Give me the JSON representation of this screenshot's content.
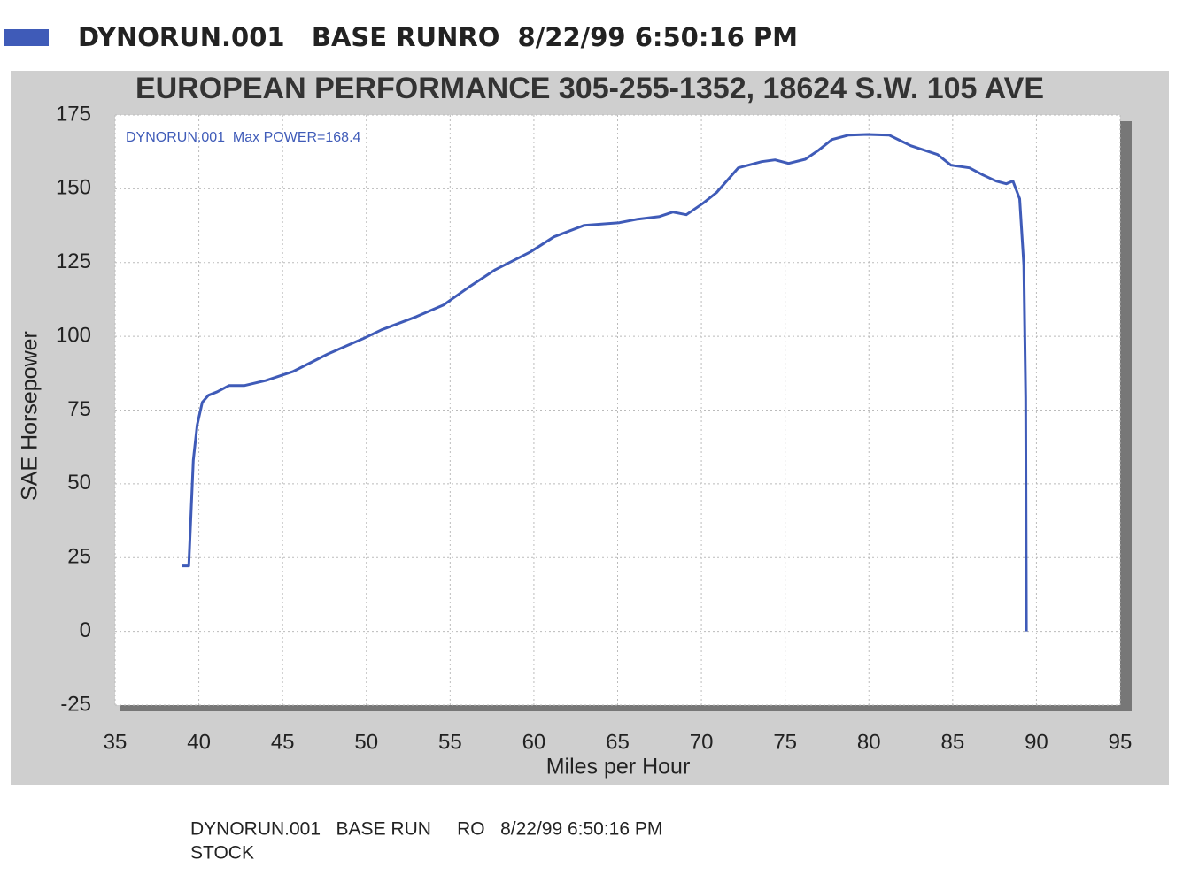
{
  "chart_data": {
    "type": "line",
    "title": "EUROPEAN PERFORMANCE 305-255-1352, 18624 S.W. 105 AVE",
    "annotation": "DYNORUN.001  Max POWER=168.4",
    "x_label": "Miles per Hour",
    "y_label": "SAE Horsepower",
    "x": [
      39.0,
      39.4,
      39.67,
      39.9,
      40.2,
      40.57,
      41.1,
      41.8,
      42.7,
      44.0,
      45.6,
      47.7,
      49.8,
      50.9,
      53.0,
      54.6,
      56.1,
      57.7,
      59.8,
      61.2,
      63.0,
      65.1,
      66.2,
      67.5,
      68.3,
      69.1,
      70.1,
      70.9,
      72.2,
      73.6,
      74.4,
      75.2,
      76.2,
      77.0,
      77.8,
      78.8,
      79.9,
      81.2,
      82.5,
      84.1,
      84.9,
      86.0,
      86.8,
      87.6,
      88.2,
      88.6,
      89.0,
      89.25,
      89.36,
      89.4
    ],
    "series": [
      {
        "name": "DYNORUN.001   BASE RUNRO  8/22/99 6:50:16 PM",
        "color": "#3f5bb8",
        "values": [
          22.2,
          22.2,
          58,
          70,
          77.6,
          80,
          81.2,
          83.3,
          83.3,
          85,
          88,
          94,
          99.2,
          102.2,
          106.7,
          110.6,
          116.6,
          122.6,
          128.6,
          133.7,
          137.6,
          138.5,
          139.7,
          140.6,
          142.1,
          141.2,
          145.1,
          148.7,
          157.1,
          159.2,
          159.8,
          158.6,
          160,
          163.1,
          166.7,
          168.2,
          168.4,
          168.2,
          164.6,
          161.6,
          158,
          157.1,
          154.7,
          152.6,
          151.7,
          152.6,
          146.6,
          124.1,
          79.1,
          0
        ]
      }
    ],
    "xlim": [
      35,
      95
    ],
    "xticks": [
      35,
      40,
      45,
      50,
      55,
      60,
      65,
      70,
      75,
      80,
      85,
      90,
      95
    ],
    "ylim": [
      -25,
      175
    ],
    "yticks": [
      -25,
      0,
      25,
      50,
      75,
      100,
      125,
      150,
      175
    ],
    "grid": true
  },
  "footer": {
    "line1": "DYNORUN.001   BASE RUN     RO   8/22/99 6:50:16 PM",
    "line2": "STOCK"
  }
}
